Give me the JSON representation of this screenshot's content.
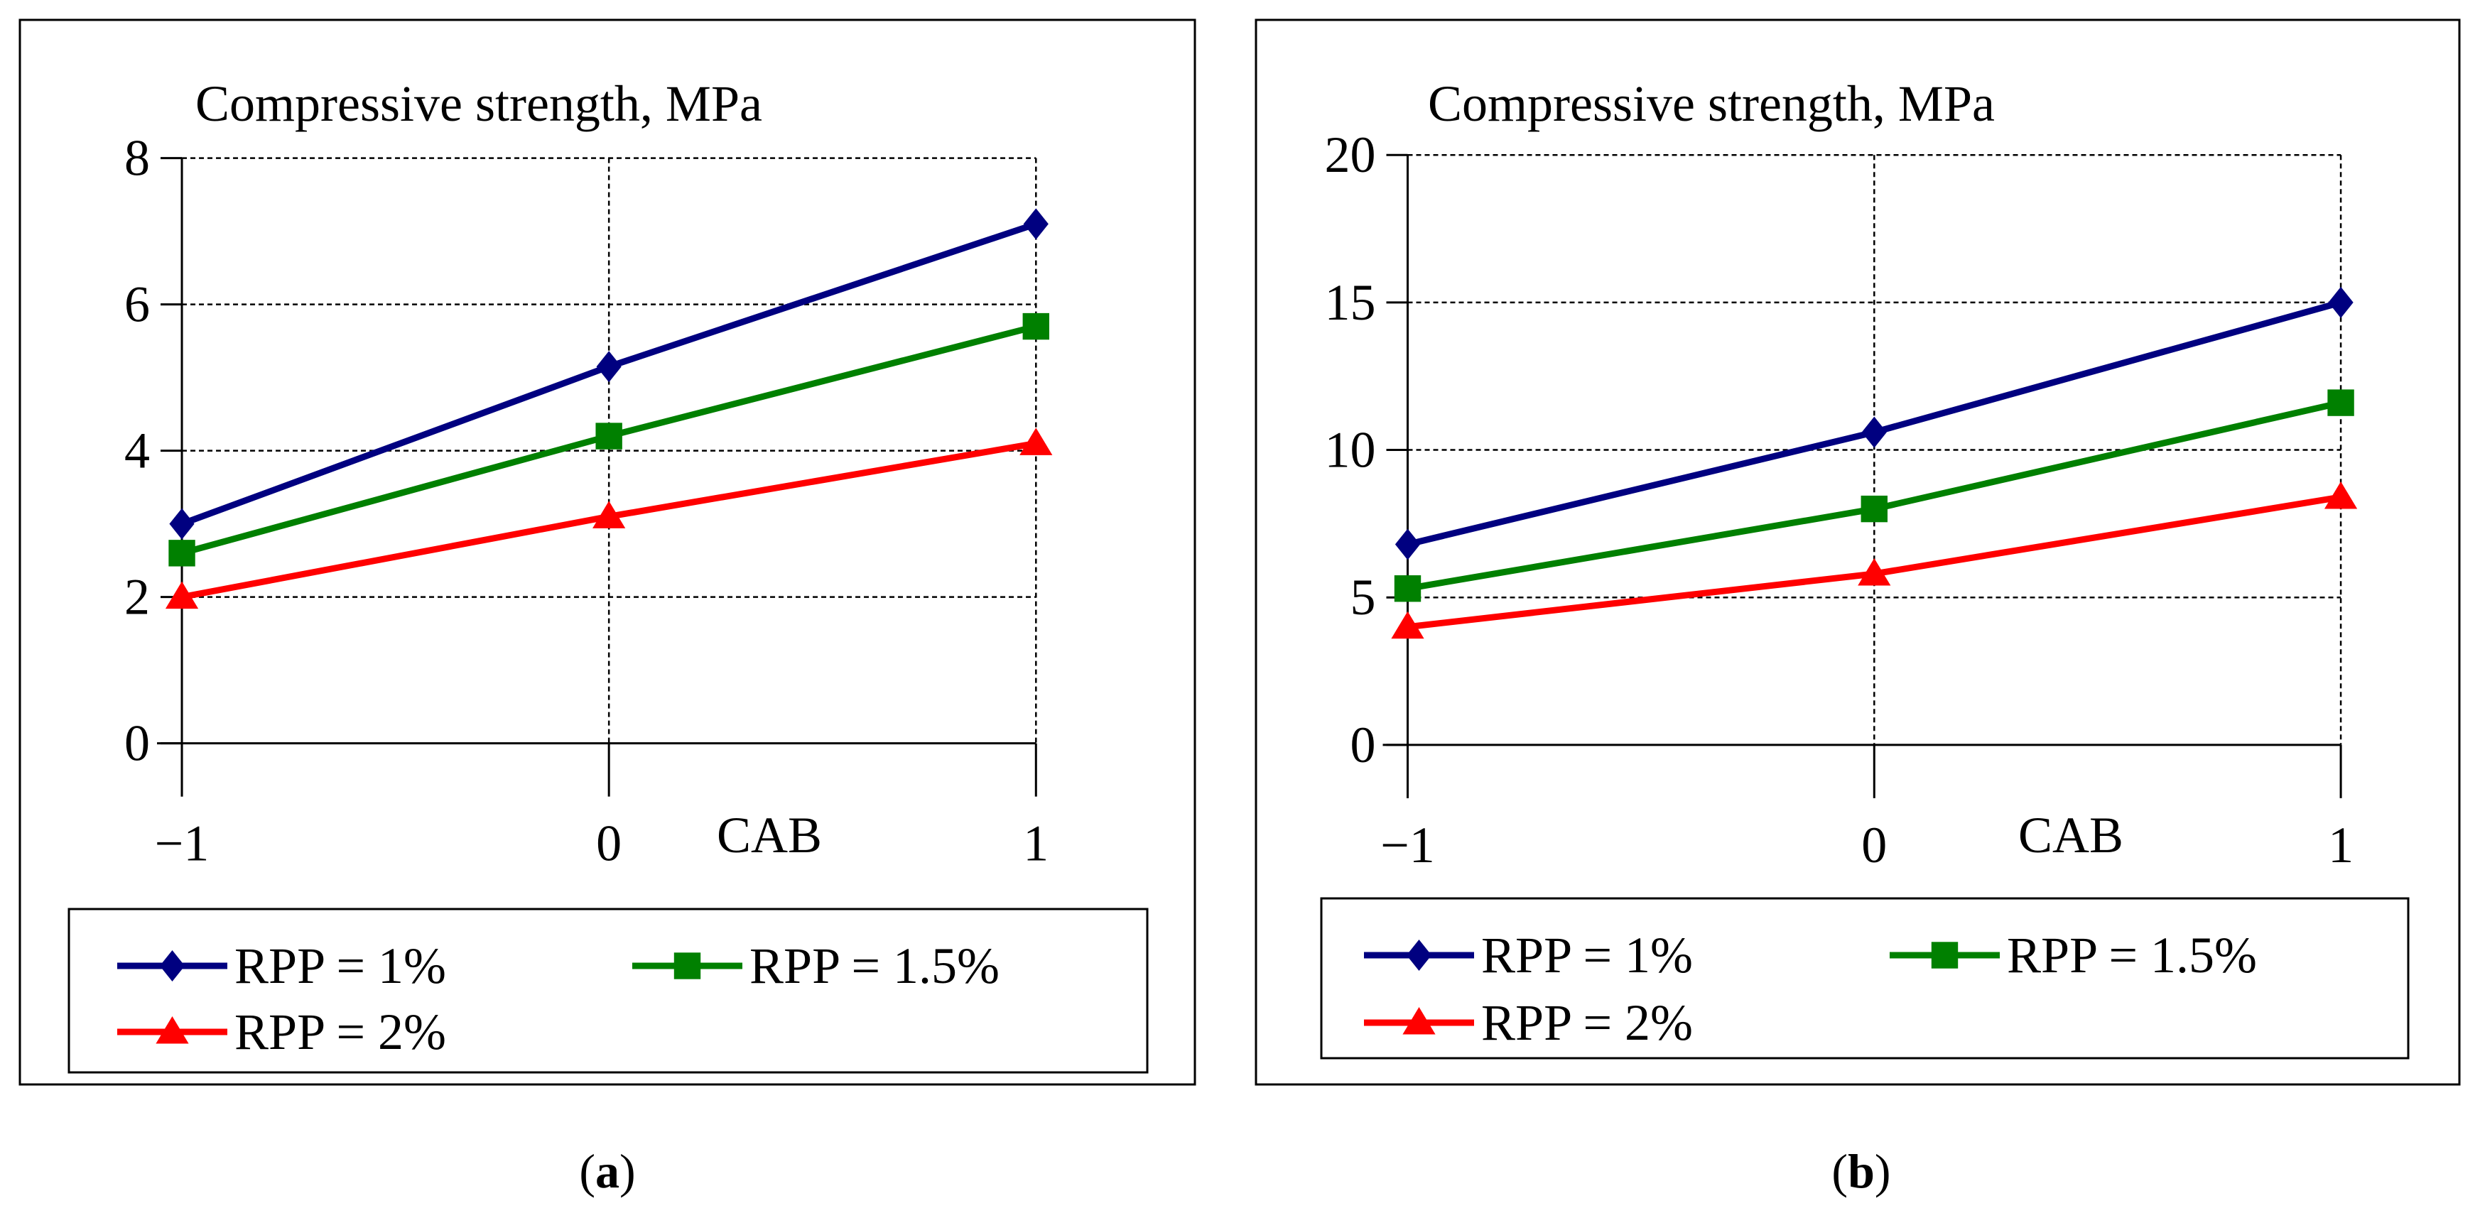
{
  "chart_data": [
    {
      "type": "line",
      "title": "Compressive strength, MPa",
      "xlabel": "CAB",
      "ylabel": "",
      "x": [
        -1,
        0,
        1
      ],
      "xticks": [
        "−1",
        "0",
        "1"
      ],
      "ylim": [
        0,
        8
      ],
      "yticks": [
        "0",
        "2",
        "4",
        "6",
        "8"
      ],
      "grid": true,
      "legend_position": "bottom",
      "series": [
        {
          "name": "RPP = 1%",
          "values": [
            3.0,
            5.15,
            7.1
          ],
          "color": "#000080",
          "marker": "diamond"
        },
        {
          "name": "RPP = 1.5%",
          "values": [
            2.6,
            4.2,
            5.7
          ],
          "color": "#008000",
          "marker": "square"
        },
        {
          "name": "RPP = 2%",
          "values": [
            2.0,
            3.1,
            4.1
          ],
          "color": "#ff0000",
          "marker": "triangle"
        }
      ]
    },
    {
      "type": "line",
      "title": "Compressive strength, MPa",
      "xlabel": "CAB",
      "ylabel": "",
      "x": [
        -1,
        0,
        1
      ],
      "xticks": [
        "−1",
        "0",
        "1"
      ],
      "ylim": [
        0,
        20
      ],
      "yticks": [
        "0",
        "5",
        "10",
        "15",
        "20"
      ],
      "grid": true,
      "legend_position": "bottom",
      "series": [
        {
          "name": "RPP = 1%",
          "values": [
            6.8,
            10.6,
            15.0
          ],
          "color": "#000080",
          "marker": "diamond"
        },
        {
          "name": "RPP = 1.5%",
          "values": [
            5.3,
            8.0,
            11.6
          ],
          "color": "#008000",
          "marker": "square"
        },
        {
          "name": "RPP = 2%",
          "values": [
            4.0,
            5.8,
            8.4
          ],
          "color": "#ff0000",
          "marker": "triangle"
        }
      ]
    }
  ],
  "captions": [
    {
      "open": "(",
      "letter": "a",
      "close": ")"
    },
    {
      "open": "(",
      "letter": "b",
      "close": ")"
    }
  ]
}
